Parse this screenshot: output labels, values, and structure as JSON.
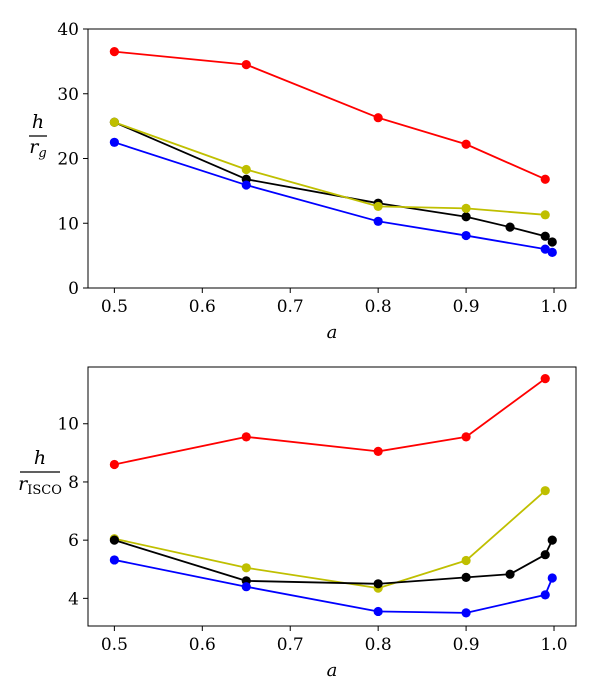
{
  "chart_data": [
    {
      "type": "line",
      "xlabel": "a",
      "ylabel": {
        "numerator": "h",
        "denominator_main": "r",
        "denominator_sub": "g",
        "denominator_sub_italic": true
      },
      "xlim": [
        0.47,
        1.025
      ],
      "ylim": [
        0,
        40
      ],
      "xticks": [
        0.5,
        0.6,
        0.7,
        0.8,
        0.9,
        1.0
      ],
      "xtick_labels": [
        "0.5",
        "0.6",
        "0.7",
        "0.8",
        "0.9",
        "1.0"
      ],
      "yticks": [
        0,
        10,
        20,
        30,
        40
      ],
      "ytick_labels": [
        "0",
        "10",
        "20",
        "30",
        "40"
      ],
      "series": [
        {
          "name": "red",
          "color": "#ff0000",
          "x": [
            0.5,
            0.65,
            0.8,
            0.9,
            0.99
          ],
          "y": [
            36.5,
            34.5,
            26.3,
            22.2,
            16.8
          ]
        },
        {
          "name": "black",
          "color": "#000000",
          "x": [
            0.5,
            0.65,
            0.8,
            0.9,
            0.95,
            0.99,
            0.998
          ],
          "y": [
            25.6,
            16.8,
            13.1,
            11.0,
            9.4,
            8.0,
            7.1
          ]
        },
        {
          "name": "yellow",
          "color": "#bfbf00",
          "x": [
            0.5,
            0.65,
            0.8,
            0.9,
            0.99
          ],
          "y": [
            25.6,
            18.3,
            12.6,
            12.3,
            11.3
          ]
        },
        {
          "name": "blue",
          "color": "#0000ff",
          "x": [
            0.5,
            0.65,
            0.8,
            0.9,
            0.99,
            0.998
          ],
          "y": [
            22.5,
            15.9,
            10.3,
            8.1,
            6.0,
            5.5
          ]
        }
      ]
    },
    {
      "type": "line",
      "xlabel": "a",
      "ylabel": {
        "numerator": "h",
        "denominator_main": "r",
        "denominator_sub": "ISCO",
        "denominator_sub_italic": false
      },
      "xlim": [
        0.47,
        1.025
      ],
      "ylim": [
        3.05,
        11.95
      ],
      "xticks": [
        0.5,
        0.6,
        0.7,
        0.8,
        0.9,
        1.0
      ],
      "xtick_labels": [
        "0.5",
        "0.6",
        "0.7",
        "0.8",
        "0.9",
        "1.0"
      ],
      "yticks": [
        4,
        6,
        8,
        10
      ],
      "ytick_labels": [
        "4",
        "6",
        "8",
        "10"
      ],
      "series": [
        {
          "name": "red",
          "color": "#ff0000",
          "x": [
            0.5,
            0.65,
            0.8,
            0.9,
            0.99
          ],
          "y": [
            8.6,
            9.55,
            9.05,
            9.55,
            11.55
          ]
        },
        {
          "name": "yellow",
          "color": "#bfbf00",
          "x": [
            0.5,
            0.65,
            0.8,
            0.9,
            0.99
          ],
          "y": [
            6.05,
            5.05,
            4.35,
            5.3,
            7.7
          ]
        },
        {
          "name": "black",
          "color": "#000000",
          "x": [
            0.5,
            0.65,
            0.8,
            0.9,
            0.95,
            0.99,
            0.998
          ],
          "y": [
            6.0,
            4.6,
            4.5,
            4.72,
            4.83,
            5.5,
            6.0
          ]
        },
        {
          "name": "blue",
          "color": "#0000ff",
          "x": [
            0.5,
            0.65,
            0.8,
            0.9,
            0.99,
            0.998
          ],
          "y": [
            5.32,
            4.4,
            3.55,
            3.5,
            4.12,
            4.7
          ]
        }
      ]
    }
  ]
}
